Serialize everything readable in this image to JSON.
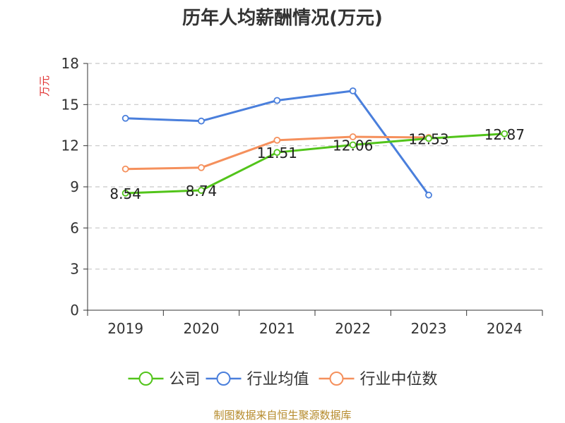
{
  "chart_data": {
    "type": "line",
    "title": "历年人均薪酬情况(万元)",
    "ylabel": "万元",
    "categories": [
      "2019",
      "2020",
      "2021",
      "2022",
      "2023",
      "2024"
    ],
    "ylim": [
      0,
      18
    ],
    "yticks": [
      0,
      3,
      6,
      9,
      12,
      15,
      18
    ],
    "grid": true,
    "legend_position": "bottom",
    "series": [
      {
        "name": "公司",
        "color": "#52c41a",
        "values": [
          8.54,
          8.74,
          11.51,
          12.06,
          12.53,
          12.87
        ],
        "labels": [
          "8.54",
          "8.74",
          "11.51",
          "12.06",
          "12.53",
          "12.87"
        ]
      },
      {
        "name": "行业均值",
        "color": "#4a7fdc",
        "values": [
          14.0,
          13.8,
          15.3,
          16.0,
          8.4,
          null
        ]
      },
      {
        "name": "行业中位数",
        "color": "#f5905c",
        "values": [
          10.3,
          10.4,
          12.4,
          12.65,
          12.6,
          null
        ]
      }
    ]
  },
  "footer": {
    "source": "制图数据来自恒生聚源数据库"
  }
}
